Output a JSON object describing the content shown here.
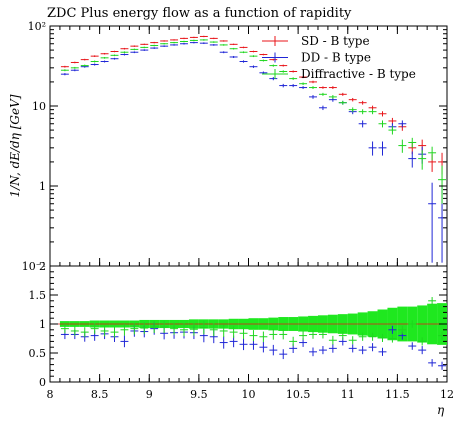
{
  "chart_data": {
    "type": "scatter",
    "title": "ZDC Plus energy flow as a function of rapidity",
    "xlabel": "η",
    "ylabel": "1/N, dE/dη [GeV]",
    "xlim": [
      8,
      12
    ],
    "main_ylim": [
      0.1,
      100
    ],
    "main_ylog": true,
    "ratio_ylim": [
      0,
      2
    ],
    "grid": false,
    "legend_position": "top-right",
    "x_tick_labels": [
      "8",
      "8.5",
      "9",
      "9.5",
      "10",
      "10.5",
      "11",
      "11.5",
      "12"
    ],
    "y_tick_labels_main": [
      "10²",
      "10",
      "1",
      "10⁻¹"
    ],
    "y_tick_labels_ratio": [
      "0",
      "0.5",
      "1",
      "1.5",
      "2"
    ],
    "bin_half_width": 0.05,
    "x": [
      8.15,
      8.25,
      8.35,
      8.45,
      8.55,
      8.65,
      8.75,
      8.85,
      8.95,
      9.05,
      9.15,
      9.25,
      9.35,
      9.45,
      9.55,
      9.65,
      9.75,
      9.85,
      9.95,
      10.05,
      10.15,
      10.25,
      10.35,
      10.45,
      10.55,
      10.65,
      10.75,
      10.85,
      10.95,
      11.05,
      11.15,
      11.25,
      11.35,
      11.45,
      11.55,
      11.65,
      11.75,
      11.85,
      11.95
    ],
    "series": [
      {
        "name": "SD - B type",
        "color": "#e8151a",
        "values": [
          31,
          35,
          38,
          42,
          45,
          48,
          52,
          56,
          59,
          62,
          65,
          67,
          70,
          72,
          74,
          70,
          65,
          59,
          54,
          48,
          44,
          38,
          32,
          27,
          23,
          20,
          17,
          17,
          14,
          12,
          11,
          9.5,
          8,
          6.5,
          5.5,
          3,
          3.2,
          2.0,
          2.0
        ],
        "err": [
          0.8,
          0.8,
          0.9,
          1,
          1,
          1,
          1.2,
          1.2,
          1.2,
          1.3,
          1.3,
          1.3,
          1.4,
          1.4,
          1.5,
          1.4,
          1.3,
          1.2,
          1.2,
          1.1,
          1,
          1,
          0.9,
          0.8,
          0.7,
          0.7,
          0.6,
          0.7,
          0.6,
          0.6,
          0.6,
          0.6,
          0.6,
          0.6,
          0.6,
          0.5,
          0.6,
          0.5,
          0.6
        ],
        "ratio": [
          1.0,
          1.0,
          1.0,
          1.0,
          1.0,
          1.0,
          1.0,
          1.0,
          1.0,
          1.0,
          1.0,
          1.0,
          1.0,
          1.0,
          1.0,
          1.0,
          1.0,
          1.0,
          1.0,
          1.0,
          1.0,
          1.0,
          1.0,
          1.0,
          1.0,
          1.0,
          1.0,
          1.0,
          1.0,
          1.0,
          1.0,
          1.0,
          1.0,
          1.0,
          1.0,
          1.0,
          1.0,
          1.0,
          1.0
        ]
      },
      {
        "name": "DD - B type",
        "color": "#1f26d6",
        "values": [
          25,
          28,
          31,
          33,
          36,
          39,
          44,
          47,
          50,
          53,
          56,
          58,
          60,
          62,
          61,
          58,
          47,
          41,
          36,
          31,
          26,
          22,
          18,
          18,
          17,
          13,
          9.5,
          12,
          11,
          8.5,
          6,
          3.0,
          3.0,
          5.5,
          6.0,
          2.2,
          2.5,
          0.6,
          0.4
        ],
        "err": [
          0.8,
          0.8,
          0.9,
          1,
          1,
          1,
          1.2,
          1.2,
          1.2,
          1.3,
          1.3,
          1.3,
          1.4,
          1.4,
          1.5,
          1.4,
          1.3,
          1.2,
          1.2,
          1.1,
          1,
          1,
          0.9,
          0.8,
          0.7,
          0.7,
          0.6,
          0.7,
          0.6,
          0.6,
          0.6,
          0.6,
          0.6,
          0.6,
          0.6,
          0.5,
          0.6,
          0.5,
          0.6
        ],
        "ratio": [
          0.82,
          0.82,
          0.78,
          0.8,
          0.83,
          0.78,
          0.7,
          0.88,
          0.87,
          0.92,
          0.84,
          0.85,
          0.86,
          0.85,
          0.8,
          0.78,
          0.68,
          0.7,
          0.65,
          0.65,
          0.6,
          0.55,
          0.48,
          0.58,
          0.68,
          0.52,
          0.55,
          0.58,
          0.7,
          0.58,
          0.55,
          0.6,
          0.52,
          0.9,
          0.8,
          0.62,
          0.55,
          0.33,
          0.28
        ]
      },
      {
        "name": "Diffractive - B type",
        "color": "#1fd61f",
        "values": [
          28,
          30,
          32,
          36,
          40,
          43,
          47,
          51,
          54,
          57,
          60,
          62,
          64,
          66,
          67,
          63,
          58,
          52,
          47,
          42,
          37,
          32,
          27,
          22,
          19,
          17,
          14,
          13,
          11,
          9,
          8.5,
          8.5,
          6,
          5,
          3.2,
          3.5,
          2.2,
          2.6,
          1.2
        ],
        "err": [
          0.8,
          0.8,
          0.9,
          1,
          1,
          1,
          1.2,
          1.2,
          1.2,
          1.3,
          1.3,
          1.3,
          1.4,
          1.4,
          1.5,
          1.4,
          1.3,
          1.2,
          1.2,
          1.1,
          1,
          1,
          0.9,
          0.8,
          0.7,
          0.7,
          0.6,
          0.7,
          0.6,
          0.6,
          0.6,
          0.6,
          0.6,
          0.6,
          0.6,
          0.5,
          0.6,
          0.5,
          0.6
        ],
        "ratio": [
          0.92,
          0.88,
          0.86,
          0.92,
          0.88,
          0.86,
          0.9,
          0.92,
          0.93,
          0.95,
          0.95,
          0.92,
          0.9,
          0.91,
          0.94,
          0.9,
          0.88,
          0.86,
          0.84,
          0.8,
          0.78,
          0.82,
          0.82,
          0.7,
          0.8,
          0.82,
          0.82,
          0.72,
          0.8,
          0.72,
          0.78,
          0.78,
          0.76,
          0.75,
          0.9,
          1.0,
          0.7,
          1.4,
          0.8
        ]
      }
    ],
    "ratio_band_halfwidth": [
      0.05,
      0.05,
      0.05,
      0.06,
      0.06,
      0.06,
      0.06,
      0.06,
      0.07,
      0.07,
      0.07,
      0.07,
      0.07,
      0.08,
      0.08,
      0.08,
      0.08,
      0.09,
      0.09,
      0.1,
      0.1,
      0.11,
      0.12,
      0.12,
      0.13,
      0.14,
      0.15,
      0.16,
      0.17,
      0.18,
      0.2,
      0.22,
      0.25,
      0.28,
      0.3,
      0.3,
      0.32,
      0.35,
      0.36
    ]
  }
}
